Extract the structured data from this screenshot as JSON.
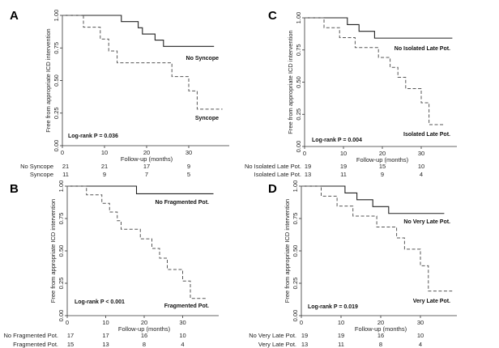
{
  "figure": {
    "ylabel": "Free from appropriate ICD intervention",
    "xlabel": "Follow-up (months)",
    "yticks": [
      "0.00",
      "0.25",
      "0.50",
      "0.75",
      "1.00"
    ],
    "xticks": [
      "0",
      "10",
      "20",
      "30"
    ]
  },
  "chart_data": [
    {
      "id": "A",
      "type": "line",
      "subtype": "kaplan-meier",
      "panel_label": "A",
      "xlabel": "Follow-up (months)",
      "ylabel": "Free from appropriate ICD intervention",
      "xlim": [
        0,
        38
      ],
      "ylim": [
        0,
        1
      ],
      "xticks": [
        0,
        10,
        20,
        30
      ],
      "yticks": [
        0,
        0.25,
        0.5,
        0.75,
        1.0
      ],
      "annotation": "Log-rank P = 0.036",
      "series": [
        {
          "name": "No Syncope",
          "style": "solid",
          "label_pos": "above-right",
          "steps": [
            [
              0,
              1.0
            ],
            [
              14,
              0.952
            ],
            [
              18,
              0.905
            ],
            [
              19,
              0.857
            ],
            [
              22,
              0.81
            ],
            [
              24,
              0.762
            ]
          ],
          "end": 36
        },
        {
          "name": "Syncope",
          "style": "dashed",
          "label_pos": "below-right",
          "steps": [
            [
              0,
              1.0
            ],
            [
              5,
              0.909
            ],
            [
              9,
              0.818
            ],
            [
              11,
              0.727
            ],
            [
              13,
              0.636
            ],
            [
              26,
              0.53
            ],
            [
              30,
              0.42
            ],
            [
              32,
              0.28
            ]
          ],
          "end": 38
        }
      ],
      "risk_table": {
        "times": [
          0,
          10,
          20,
          30
        ],
        "rows": [
          {
            "label": "No Syncope",
            "values": [
              21,
              21,
              17,
              9
            ]
          },
          {
            "label": "Syncope",
            "values": [
              11,
              9,
              7,
              5
            ]
          }
        ]
      }
    },
    {
      "id": "C",
      "type": "line",
      "subtype": "kaplan-meier",
      "panel_label": "C",
      "xlabel": "Follow-up (months)",
      "ylabel": "Free from appropriate ICD intervention",
      "xlim": [
        0,
        38
      ],
      "ylim": [
        0,
        1
      ],
      "xticks": [
        0,
        10,
        20,
        30
      ],
      "yticks": [
        0,
        0.25,
        0.5,
        0.75,
        1.0
      ],
      "annotation": "Log-rank P = 0.004",
      "series": [
        {
          "name": "No Isolated Late Pot.",
          "style": "solid",
          "steps": [
            [
              0,
              1.0
            ],
            [
              11,
              0.947
            ],
            [
              14,
              0.895
            ],
            [
              18,
              0.842
            ]
          ],
          "end": 38
        },
        {
          "name": "Isolated Late Pot.",
          "style": "dashed",
          "steps": [
            [
              0,
              1.0
            ],
            [
              5,
              0.923
            ],
            [
              9,
              0.846
            ],
            [
              13,
              0.769
            ],
            [
              19,
              0.692
            ],
            [
              22,
              0.615
            ],
            [
              24,
              0.538
            ],
            [
              26,
              0.45
            ],
            [
              30,
              0.34
            ],
            [
              32,
              0.17
            ]
          ],
          "end": 36
        }
      ],
      "risk_table": {
        "times": [
          0,
          10,
          20,
          30
        ],
        "rows": [
          {
            "label": "No Isolated Late Pot.",
            "values": [
              19,
              19,
              15,
              10
            ]
          },
          {
            "label": "Isolated Late Pot.",
            "values": [
              13,
              11,
              9,
              4
            ]
          }
        ]
      }
    },
    {
      "id": "B",
      "type": "line",
      "subtype": "kaplan-meier",
      "panel_label": "B",
      "xlabel": "Follow-up (months)",
      "ylabel": "Free from appropriate ICD intervention",
      "xlim": [
        0,
        38
      ],
      "ylim": [
        0,
        1
      ],
      "xticks": [
        0,
        10,
        20,
        30
      ],
      "yticks": [
        0,
        0.25,
        0.5,
        0.75,
        1.0
      ],
      "annotation": "Log-rank P < 0.001",
      "series": [
        {
          "name": "No Fragmented Pot.",
          "style": "solid",
          "steps": [
            [
              0,
              1.0
            ],
            [
              18,
              0.941
            ]
          ],
          "end": 38
        },
        {
          "name": "Fragmented Pot.",
          "style": "dashed",
          "steps": [
            [
              0,
              1.0
            ],
            [
              5,
              0.933
            ],
            [
              9,
              0.867
            ],
            [
              11,
              0.8
            ],
            [
              13,
              0.733
            ],
            [
              14,
              0.667
            ],
            [
              19,
              0.593
            ],
            [
              22,
              0.519
            ],
            [
              24,
              0.444
            ],
            [
              26,
              0.356
            ],
            [
              30,
              0.267
            ],
            [
              32,
              0.133
            ]
          ],
          "end": 36
        }
      ],
      "risk_table": {
        "times": [
          0,
          10,
          20,
          30
        ],
        "rows": [
          {
            "label": "No Fragmented Pot.",
            "values": [
              17,
              17,
              16,
              10
            ]
          },
          {
            "label": "Fragmented Pot.",
            "values": [
              15,
              13,
              8,
              4
            ]
          }
        ]
      }
    },
    {
      "id": "D",
      "type": "line",
      "subtype": "kaplan-meier",
      "panel_label": "D",
      "xlabel": "Follow-up (months)",
      "ylabel": "Free from appropriate ICD intervention",
      "xlim": [
        0,
        38
      ],
      "ylim": [
        0,
        1
      ],
      "xticks": [
        0,
        10,
        20,
        30
      ],
      "yticks": [
        0,
        0.25,
        0.5,
        0.75,
        1.0
      ],
      "annotation": "Log-rank P = 0.019",
      "series": [
        {
          "name": "No Very Late Pot.",
          "style": "solid",
          "steps": [
            [
              0,
              1.0
            ],
            [
              11,
              0.947
            ],
            [
              14,
              0.895
            ],
            [
              18,
              0.842
            ],
            [
              22,
              0.789
            ]
          ],
          "end": 36
        },
        {
          "name": "Very Late Pot.",
          "style": "dashed",
          "steps": [
            [
              0,
              1.0
            ],
            [
              5,
              0.923
            ],
            [
              9,
              0.846
            ],
            [
              13,
              0.769
            ],
            [
              19,
              0.684
            ],
            [
              24,
              0.6
            ],
            [
              26,
              0.513
            ],
            [
              30,
              0.385
            ],
            [
              32,
              0.19
            ]
          ],
          "end": 38
        }
      ],
      "risk_table": {
        "times": [
          0,
          10,
          20,
          30
        ],
        "rows": [
          {
            "label": "No Very Late Pot.",
            "values": [
              19,
              19,
              16,
              10
            ]
          },
          {
            "label": "Very Late Pot.",
            "values": [
              13,
              11,
              8,
              4
            ]
          }
        ]
      }
    }
  ]
}
